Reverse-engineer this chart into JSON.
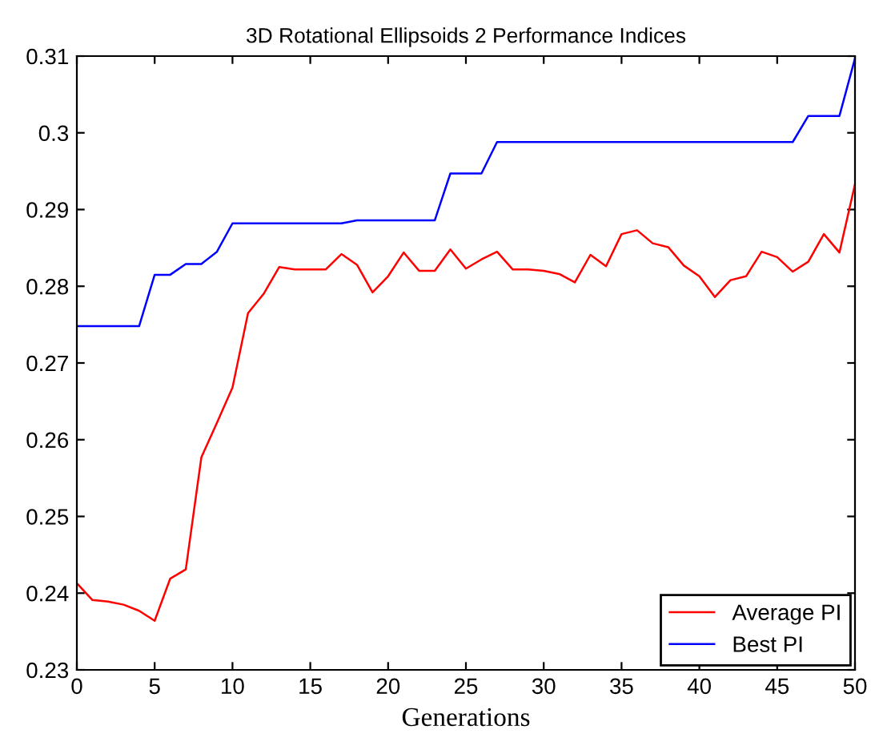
{
  "chart_data": {
    "type": "line",
    "title": "3D Rotational Ellipsoids 2 Performance Indices",
    "xlabel": "Generations",
    "x": [
      0,
      1,
      2,
      3,
      4,
      5,
      6,
      7,
      8,
      9,
      10,
      11,
      12,
      13,
      14,
      15,
      16,
      17,
      18,
      19,
      20,
      21,
      22,
      23,
      24,
      25,
      26,
      27,
      28,
      29,
      30,
      31,
      32,
      33,
      34,
      35,
      36,
      37,
      38,
      39,
      40,
      41,
      42,
      43,
      44,
      45,
      46,
      47,
      48,
      49,
      50
    ],
    "series": [
      {
        "name": "Average PI",
        "color": "#ff0000",
        "values": [
          0.2413,
          0.2391,
          0.2389,
          0.2385,
          0.2377,
          0.2364,
          0.2419,
          0.2431,
          0.2577,
          0.2622,
          0.2668,
          0.2765,
          0.279,
          0.2825,
          0.2822,
          0.2822,
          0.2822,
          0.2842,
          0.2828,
          0.2792,
          0.2813,
          0.2844,
          0.282,
          0.282,
          0.2848,
          0.2823,
          0.2835,
          0.2845,
          0.2822,
          0.2822,
          0.282,
          0.2816,
          0.2805,
          0.2841,
          0.2826,
          0.2868,
          0.2873,
          0.2856,
          0.2851,
          0.2827,
          0.2813,
          0.2786,
          0.2808,
          0.2813,
          0.2845,
          0.2838,
          0.2819,
          0.2832,
          0.2868,
          0.2844,
          0.2933
        ]
      },
      {
        "name": "Best PI",
        "color": "#0000ff",
        "values": [
          0.2748,
          0.2748,
          0.2748,
          0.2748,
          0.2748,
          0.2815,
          0.2815,
          0.2829,
          0.2829,
          0.2845,
          0.2882,
          0.2882,
          0.2882,
          0.2882,
          0.2882,
          0.2882,
          0.2882,
          0.2882,
          0.2886,
          0.2886,
          0.2886,
          0.2886,
          0.2886,
          0.2886,
          0.2947,
          0.2947,
          0.2947,
          0.2988,
          0.2988,
          0.2988,
          0.2988,
          0.2988,
          0.2988,
          0.2988,
          0.2988,
          0.2988,
          0.2988,
          0.2988,
          0.2988,
          0.2988,
          0.2988,
          0.2988,
          0.2988,
          0.2988,
          0.2988,
          0.2988,
          0.2988,
          0.3022,
          0.3022,
          0.3022,
          0.3097
        ]
      }
    ],
    "xlim": [
      0,
      50
    ],
    "xticks": [
      0,
      5,
      10,
      15,
      20,
      25,
      30,
      35,
      40,
      45,
      50
    ],
    "ylim": [
      0.23,
      0.31
    ],
    "yticks": [
      0.23,
      0.24,
      0.25,
      0.26,
      0.27,
      0.28,
      0.29,
      0.3,
      0.31
    ],
    "grid": false,
    "legend": "bottom right",
    "marker": "none",
    "line_style": "solid"
  }
}
